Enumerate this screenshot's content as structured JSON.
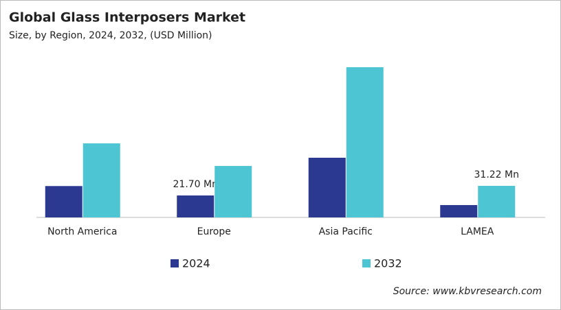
{
  "chart_data": {
    "type": "bar",
    "title": "Global Glass Interposers Market",
    "subtitle": "Size, by Region, 2024, 2032, (USD Million)",
    "categories": [
      "North America",
      "Europe",
      "Asia Pacific",
      "LAMEA"
    ],
    "series": [
      {
        "name": "2024",
        "color": "#2b3990",
        "values": [
          31.0,
          21.7,
          59.0,
          12.2
        ],
        "value_labels": [
          null,
          "21.70 Mn",
          null,
          null
        ]
      },
      {
        "name": "2032",
        "color": "#4ec5d2",
        "values": [
          73.2,
          50.9,
          148.5,
          31.22
        ],
        "value_labels": [
          null,
          null,
          null,
          "31.22 Mn"
        ]
      }
    ],
    "source": "Source: www.kbvresearch.com"
  }
}
